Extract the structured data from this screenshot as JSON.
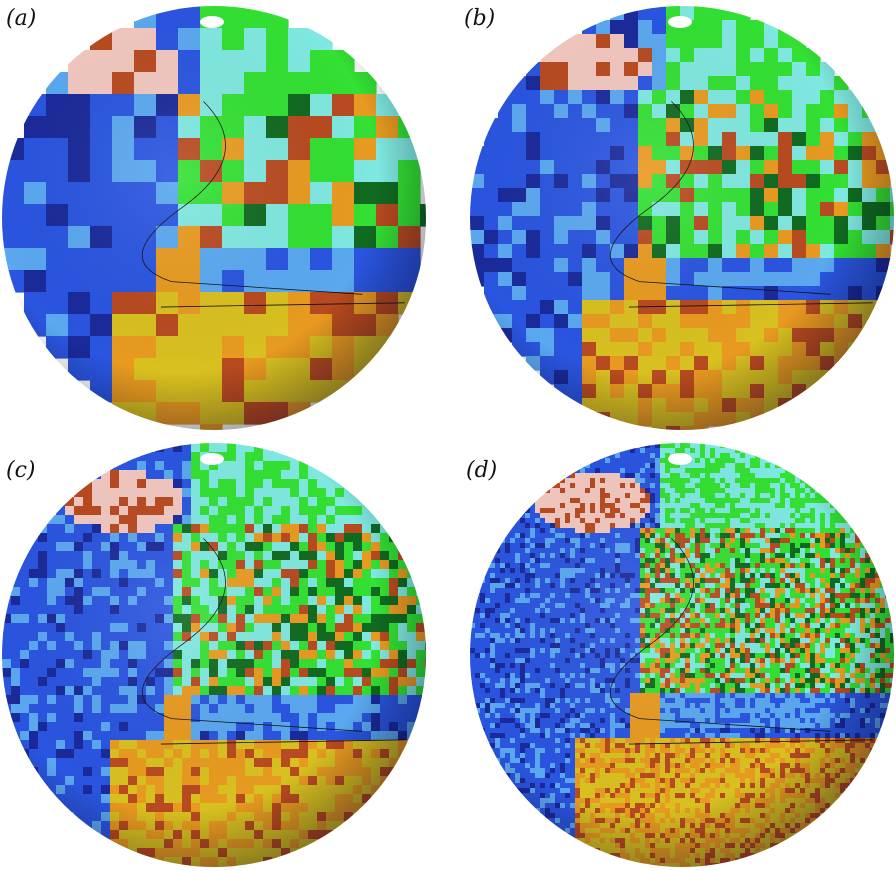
{
  "figure": {
    "panels": [
      {
        "label": "(a)",
        "resolution": "coarse"
      },
      {
        "label": "(b)",
        "resolution": "medium"
      },
      {
        "label": "(c)",
        "resolution": "fine"
      },
      {
        "label": "(d)",
        "resolution": "finest"
      }
    ],
    "colors": {
      "deep_ocean": "#1a2a9a",
      "ocean": "#2a55e0",
      "shallow_ocean": "#5aa8f0",
      "coast": "#7fe8e0",
      "lowland": "#33e033",
      "forest": "#106a20",
      "plain": "#d8c020",
      "highland": "#e89a20",
      "mountain": "#b84a20",
      "ice": "#f2c8c0"
    }
  }
}
